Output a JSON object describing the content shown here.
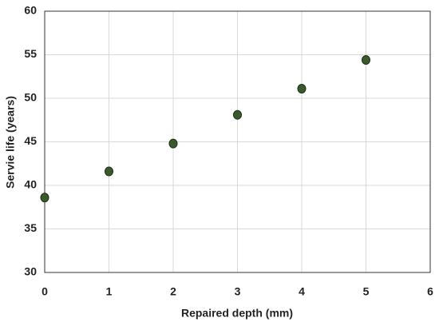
{
  "chart_data": {
    "type": "scatter",
    "xlabel": "Repaired depth (mm)",
    "ylabel": "Servie life (years)",
    "x": [
      0,
      1,
      2,
      3,
      4,
      5
    ],
    "values": [
      38.6,
      41.6,
      44.8,
      48.1,
      51.1,
      54.4
    ],
    "color": "#3a5a2c",
    "xlim": [
      0,
      6
    ],
    "xticks": [
      0,
      1,
      2,
      3,
      4,
      5,
      6
    ],
    "ylim": [
      30,
      60
    ],
    "yticks": [
      30,
      35,
      40,
      45,
      50,
      55,
      60
    ],
    "grid": true
  }
}
